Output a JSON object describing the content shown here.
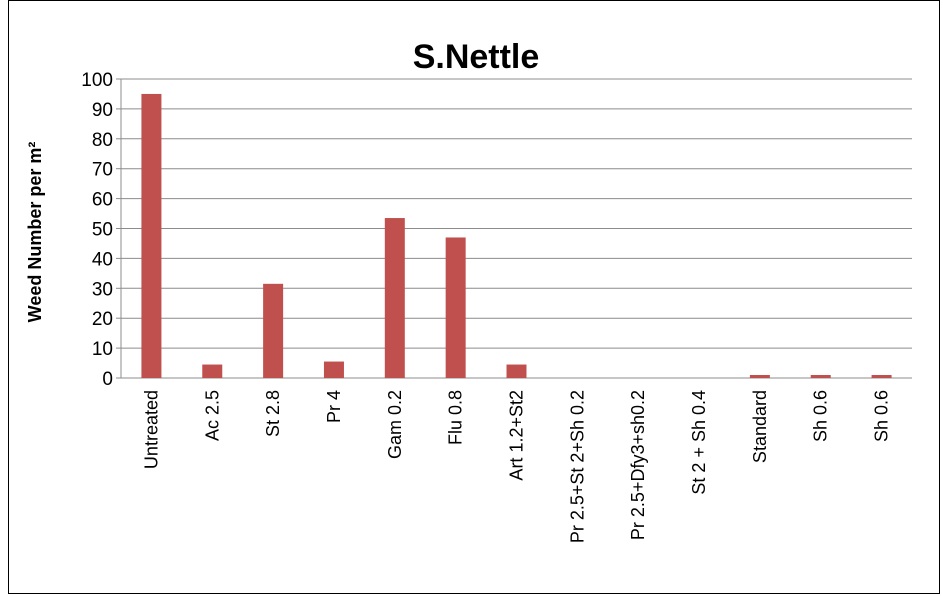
{
  "chart_data": {
    "type": "bar",
    "title": "S.Nettle",
    "ylabel": "Weed Number per m²",
    "xlabel": "",
    "ylim": [
      0,
      100
    ],
    "yticks": [
      0,
      10,
      20,
      30,
      40,
      50,
      60,
      70,
      80,
      90,
      100
    ],
    "grid": true,
    "legend": "none",
    "bar_color": "#c0504d",
    "categories": [
      "Untreated",
      "Ac 2.5",
      "St 2.8",
      "Pr 4",
      "Gam 0.2",
      "Flu 0.8",
      "Art 1.2+St2",
      "Pr 2.5+St 2+Sh 0.2",
      "Pr 2.5+Dfy3+sh0.2",
      "St 2 + Sh 0.4",
      "Standard",
      "Sh 0.6",
      "Sh 0.6"
    ],
    "values": [
      95,
      4.5,
      31.5,
      5.5,
      53.5,
      47,
      4.5,
      0,
      0,
      0,
      1,
      1,
      1
    ]
  }
}
